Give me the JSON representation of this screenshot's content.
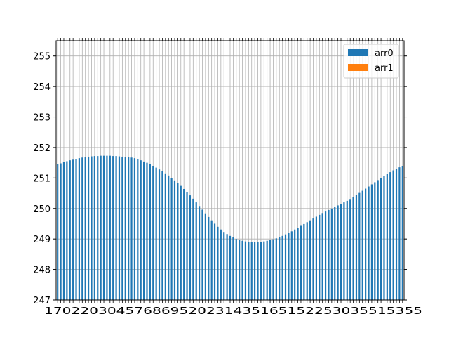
{
  "chart_data": {
    "type": "bar",
    "ylim": [
      247,
      255.5
    ],
    "yticks": [
      247,
      248,
      249,
      250,
      251,
      252,
      253,
      254,
      255
    ],
    "grid": true,
    "legend_position": "top-right",
    "x_tick_labels_note": "dense overlapping numeric tick labels",
    "series": [
      {
        "name": "arr0",
        "color": "#1f77b4",
        "values": [
          251.45,
          251.48,
          251.52,
          251.55,
          251.58,
          251.6,
          251.63,
          251.65,
          251.67,
          251.69,
          251.7,
          251.71,
          251.72,
          251.72,
          251.73,
          251.73,
          251.73,
          251.73,
          251.72,
          251.72,
          251.71,
          251.7,
          251.69,
          251.68,
          251.67,
          251.65,
          251.62,
          251.58,
          251.54,
          251.5,
          251.45,
          251.4,
          251.34,
          251.28,
          251.22,
          251.15,
          251.08,
          251.0,
          250.92,
          250.83,
          250.74,
          250.64,
          250.54,
          250.43,
          250.32,
          250.2,
          250.08,
          249.96,
          249.84,
          249.72,
          249.61,
          249.5,
          249.4,
          249.31,
          249.23,
          249.16,
          249.1,
          249.05,
          249.0,
          248.97,
          248.94,
          248.92,
          248.91,
          248.9,
          248.9,
          248.9,
          248.91,
          248.92,
          248.94,
          248.96,
          248.99,
          249.02,
          249.06,
          249.1,
          249.15,
          249.2,
          249.25,
          249.31,
          249.37,
          249.43,
          249.49,
          249.55,
          249.61,
          249.67,
          249.73,
          249.79,
          249.85,
          249.9,
          249.95,
          250.0,
          250.05,
          250.1,
          250.15,
          250.2,
          250.25,
          250.31,
          250.37,
          250.44,
          250.51,
          250.58,
          250.65,
          250.72,
          250.79,
          250.86,
          250.93,
          251.0,
          251.07,
          251.13,
          251.19,
          251.25,
          251.3,
          251.35,
          251.38
        ]
      },
      {
        "name": "arr1",
        "color": "#ff7f0e",
        "values": []
      }
    ]
  },
  "legend": {
    "items": [
      {
        "label": "arr0",
        "color": "#1f77b4"
      },
      {
        "label": "arr1",
        "color": "#ff7f0e"
      }
    ]
  },
  "x_tick_text": "170220304576869520231435165152253035515355"
}
